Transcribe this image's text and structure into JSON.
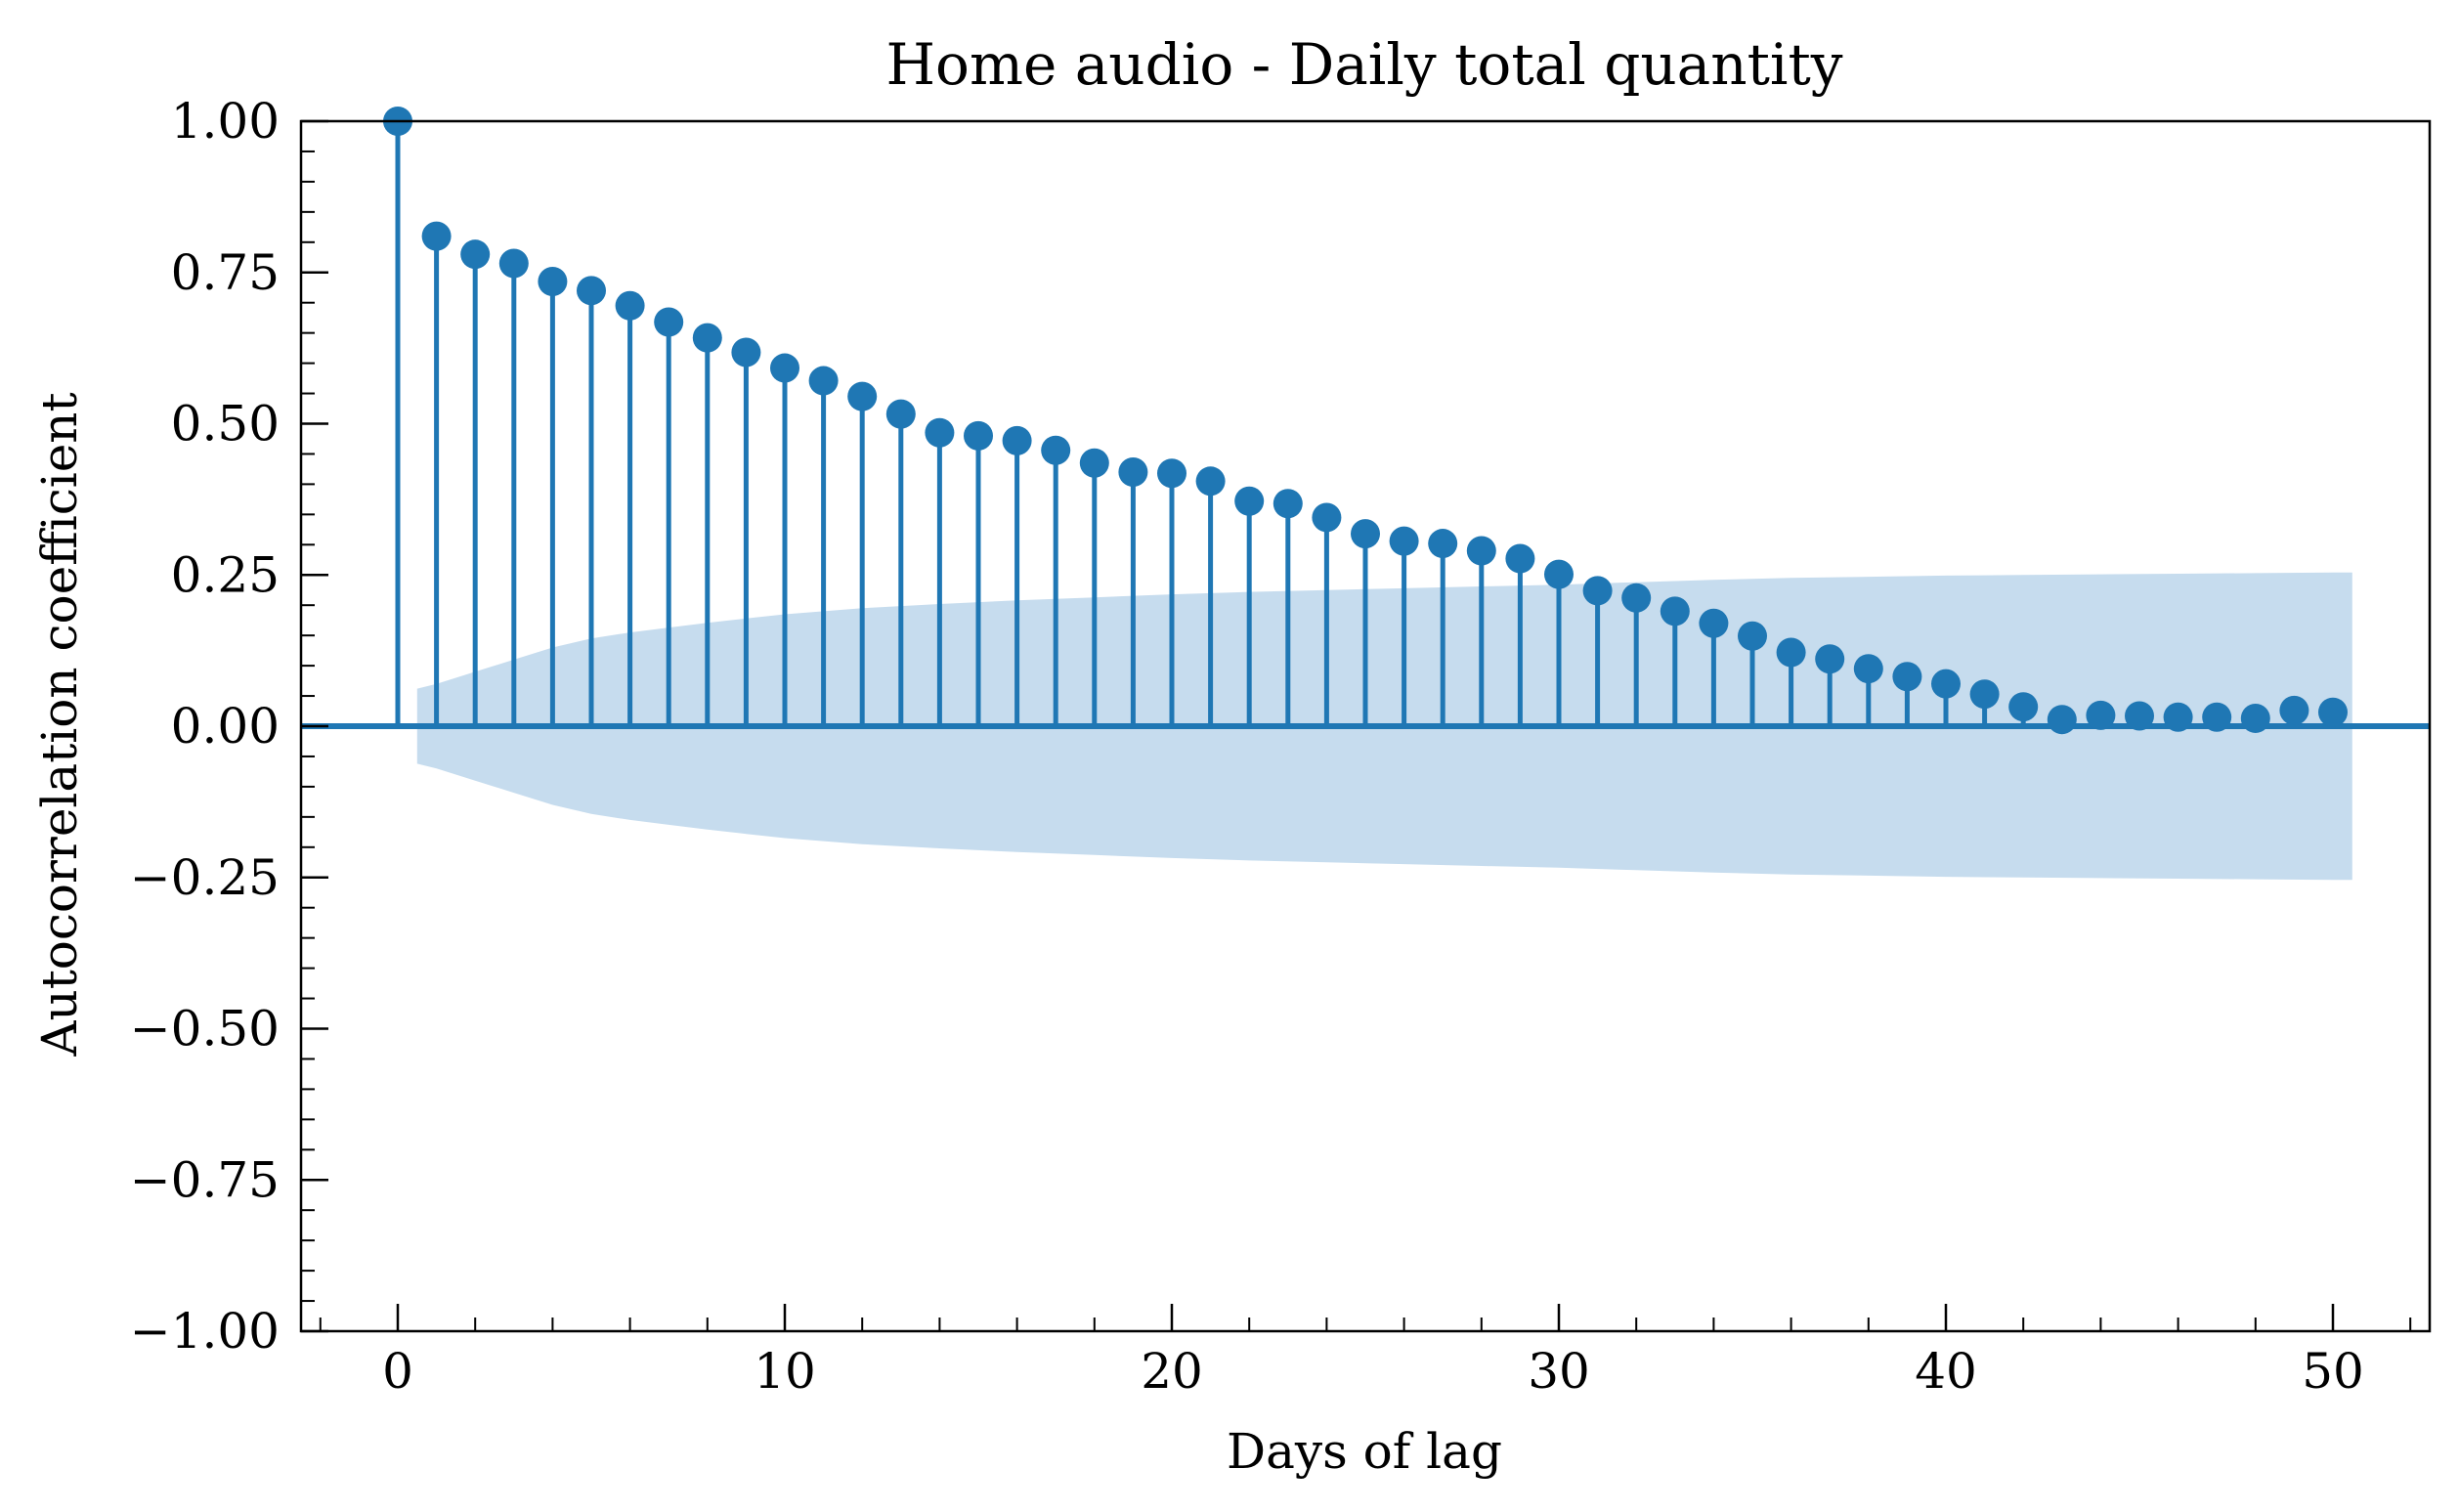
{
  "chart_data": {
    "type": "stem",
    "title": "Home audio - Daily total quantity",
    "xlabel": "Days of lag",
    "ylabel": "Autocorrelation coefficient",
    "xlim": [
      -2.5,
      52.5
    ],
    "ylim": [
      -1.0,
      1.0
    ],
    "x_ticks": [
      0,
      10,
      20,
      30,
      40,
      50
    ],
    "x_tick_labels": [
      "0",
      "10",
      "20",
      "30",
      "40",
      "50"
    ],
    "y_ticks": [
      -1.0,
      -0.75,
      -0.5,
      -0.25,
      0.0,
      0.25,
      0.5,
      0.75,
      1.0
    ],
    "y_tick_labels": [
      "−1.00",
      "−0.75",
      "−0.50",
      "−0.25",
      "0.00",
      "0.25",
      "0.50",
      "0.75",
      "1.00"
    ],
    "grid": false,
    "lags": [
      0,
      1,
      2,
      3,
      4,
      5,
      6,
      7,
      8,
      9,
      10,
      11,
      12,
      13,
      14,
      15,
      16,
      17,
      18,
      19,
      20,
      21,
      22,
      23,
      24,
      25,
      26,
      27,
      28,
      29,
      30,
      31,
      32,
      33,
      34,
      35,
      36,
      37,
      38,
      39,
      40,
      41,
      42,
      43,
      44,
      45,
      46,
      47,
      48,
      49,
      50
    ],
    "values": [
      1.0,
      0.81,
      0.78,
      0.765,
      0.735,
      0.72,
      0.695,
      0.668,
      0.642,
      0.618,
      0.592,
      0.571,
      0.545,
      0.516,
      0.485,
      0.48,
      0.472,
      0.456,
      0.435,
      0.42,
      0.418,
      0.405,
      0.372,
      0.368,
      0.345,
      0.318,
      0.306,
      0.302,
      0.29,
      0.277,
      0.251,
      0.224,
      0.212,
      0.19,
      0.17,
      0.149,
      0.122,
      0.111,
      0.095,
      0.082,
      0.07,
      0.053,
      0.032,
      0.011,
      0.018,
      0.017,
      0.015,
      0.015,
      0.013,
      0.026,
      0.023
    ],
    "confidence_band": {
      "x": [
        0.5,
        1,
        2,
        3,
        4,
        5,
        6,
        7,
        8,
        9,
        10,
        12,
        14,
        16,
        18,
        20,
        22,
        24,
        26,
        28,
        30,
        32,
        34,
        36,
        38,
        40,
        42,
        44,
        46,
        48,
        50,
        50.5
      ],
      "upper": [
        0.062,
        0.07,
        0.09,
        0.11,
        0.13,
        0.145,
        0.155,
        0.163,
        0.171,
        0.178,
        0.185,
        0.195,
        0.202,
        0.208,
        0.213,
        0.218,
        0.222,
        0.225,
        0.228,
        0.231,
        0.234,
        0.238,
        0.242,
        0.245,
        0.247,
        0.249,
        0.25,
        0.251,
        0.252,
        0.253,
        0.254,
        0.254
      ]
    },
    "colors": {
      "stem": "#1f77b4",
      "band": "#c6dcee",
      "axes": "#000000"
    }
  }
}
